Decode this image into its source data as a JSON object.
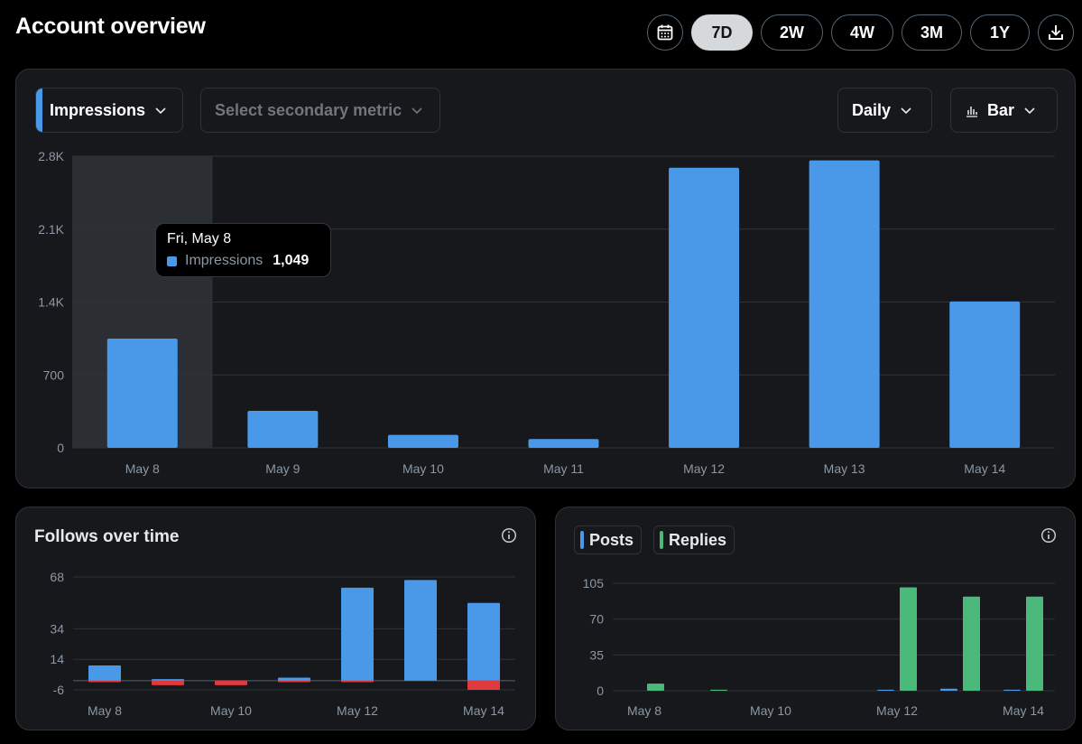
{
  "header": {
    "title": "Account overview"
  },
  "range": {
    "options": [
      "7D",
      "2W",
      "4W",
      "3M",
      "1Y"
    ],
    "selected": "7D"
  },
  "controls": {
    "primary_metric": "Impressions",
    "secondary_placeholder": "Select secondary metric",
    "interval": "Daily",
    "chart_style": "Bar"
  },
  "tooltip": {
    "date": "Fri, May 8",
    "metric": "Impressions",
    "value": "1,049"
  },
  "follows": {
    "title": "Follows over time"
  },
  "posts_card": {
    "legend": [
      "Posts",
      "Replies"
    ]
  },
  "colors": {
    "blue": "#4a99e9",
    "green": "#4bb97a",
    "red": "#e0393e"
  },
  "chart_data": [
    {
      "type": "bar",
      "categories": [
        "May 8",
        "May 9",
        "May 10",
        "May 11",
        "May 12",
        "May 13",
        "May 14"
      ],
      "series": [
        {
          "name": "Impressions",
          "values": [
            1049,
            355,
            125,
            85,
            2690,
            2760,
            1405
          ]
        }
      ],
      "yticks": [
        "0",
        "700",
        "1.4K",
        "2.1K",
        "2.8K"
      ],
      "ylim": [
        0,
        2800
      ],
      "highlighted": "May 8"
    },
    {
      "type": "bar",
      "title": "Follows over time",
      "categories": [
        "May 8",
        "May 9",
        "May 10",
        "May 11",
        "May 12",
        "May 13",
        "May 14"
      ],
      "xtick_labels": [
        "May 8",
        "May 10",
        "May 12",
        "May 14"
      ],
      "series": [
        {
          "values": [
            10,
            1,
            0,
            2,
            61,
            66,
            51
          ]
        },
        {
          "values": [
            -1,
            -3,
            -3,
            -1,
            -1,
            0,
            -6
          ]
        }
      ],
      "yticks": [
        "-6",
        "14",
        "34",
        "68"
      ],
      "ylim": [
        -6,
        68
      ]
    },
    {
      "type": "bar",
      "categories": [
        "May 8",
        "May 9",
        "May 10",
        "May 11",
        "May 12",
        "May 13",
        "May 14"
      ],
      "xtick_labels": [
        "May 8",
        "May 10",
        "May 12",
        "May 14"
      ],
      "series": [
        {
          "name": "Posts",
          "values": [
            0,
            0,
            0,
            0,
            1,
            2,
            1
          ]
        },
        {
          "name": "Replies",
          "values": [
            7,
            1,
            0,
            0,
            101,
            92,
            92
          ]
        }
      ],
      "yticks": [
        "0",
        "35",
        "70",
        "105"
      ],
      "ylim": [
        0,
        105
      ]
    }
  ]
}
